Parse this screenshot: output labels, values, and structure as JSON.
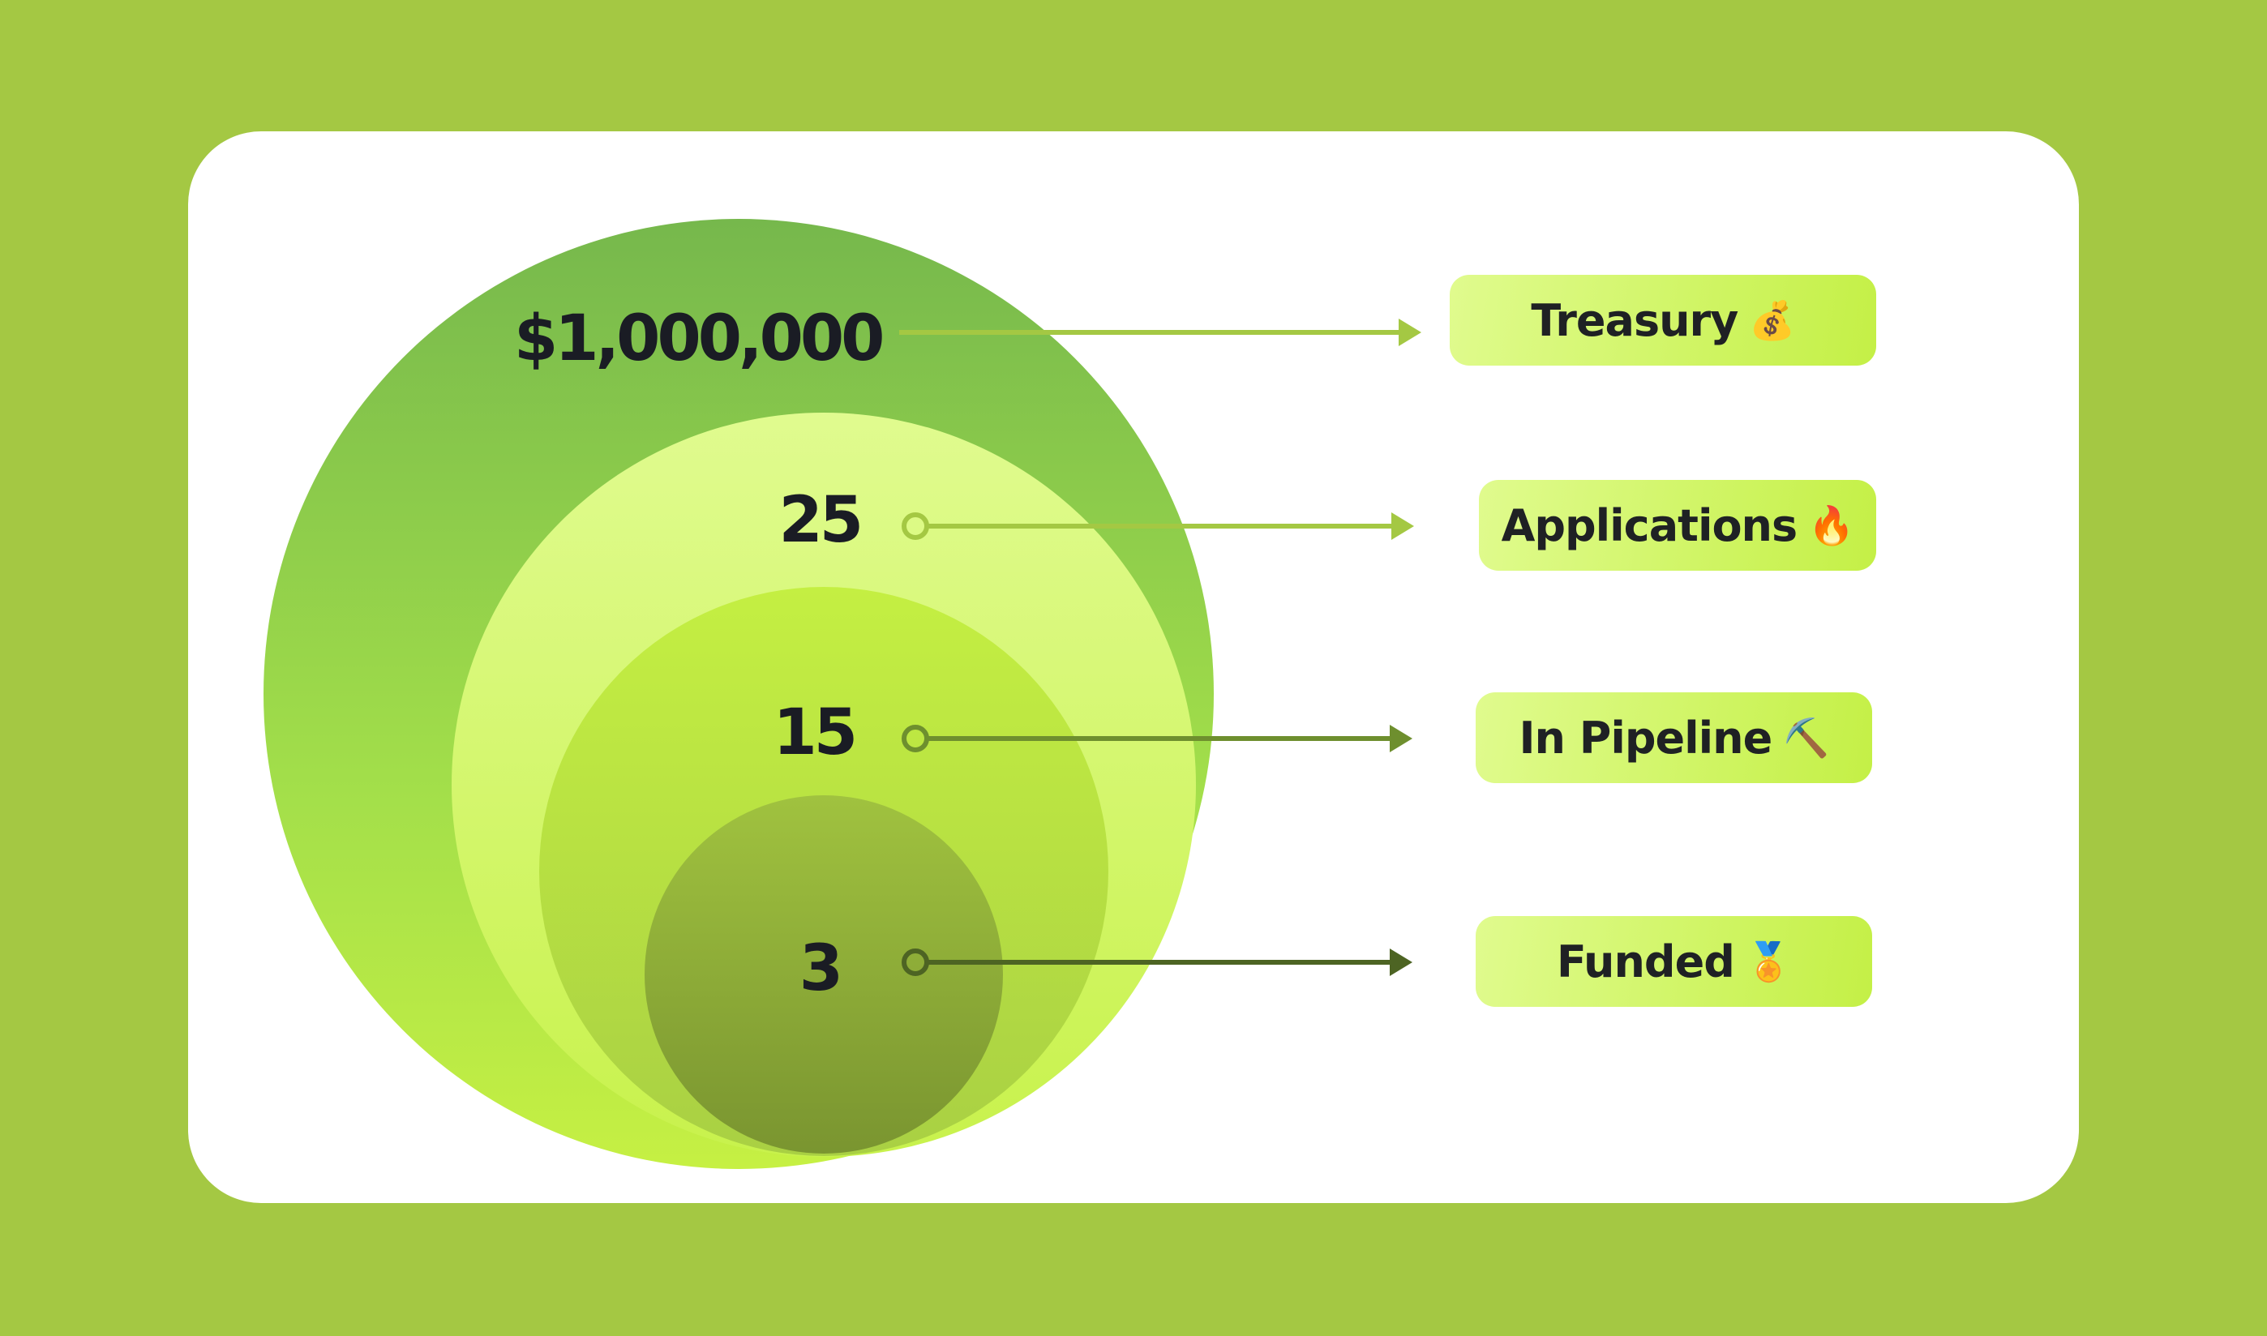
{
  "colors": {
    "background": "#a4c843",
    "card": "#ffffff",
    "outer_circle": "#7bbf4c",
    "applications_circle": "#dcfa8a",
    "pipeline_circle": "#bfe843",
    "funded_circle": "#8fae3a",
    "text": "#1a1c24"
  },
  "levels": [
    {
      "value": "$1,000,000",
      "label": "Treasury",
      "icon": "💰",
      "icon_name": "money-bag-icon",
      "line_color": "#a4c843"
    },
    {
      "value": "25",
      "label": "Applications",
      "icon": "🔥",
      "icon_name": "fire-icon",
      "line_color": "#a4c843"
    },
    {
      "value": "15",
      "label": "In Pipeline",
      "icon": "⛏️",
      "icon_name": "pickaxe-icon",
      "line_color": "#6e8f2e"
    },
    {
      "value": "3",
      "label": "Funded",
      "icon": "🏅",
      "icon_name": "medal-icon",
      "line_color": "#4d6423"
    }
  ]
}
